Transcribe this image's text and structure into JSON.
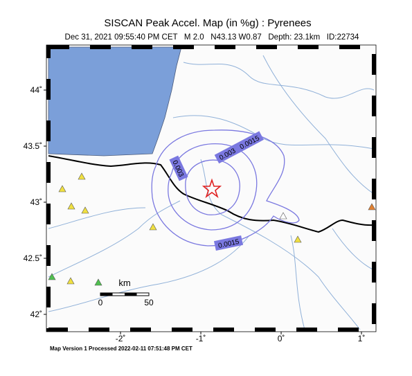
{
  "header": {
    "title": "SISCAN Peak Accel. Map (in %g) : Pyrenees",
    "subtitle": "Dec 31, 2021 09:55:40 PM CET   M 2.0   N43.13 W0.87   Depth: 23.1km   ID:22734"
  },
  "map": {
    "xlim": [
      -2.897,
      1.155
    ],
    "ylim": [
      41.864,
      44.383
    ],
    "xticks": [
      {
        "value": -2,
        "label": "-2˚"
      },
      {
        "value": -1,
        "label": "-1˚"
      },
      {
        "value": 0,
        "label": "0˚"
      },
      {
        "value": 1,
        "label": "1˚"
      }
    ],
    "yticks": [
      {
        "value": 42,
        "label": "42˚"
      },
      {
        "value": 42.5,
        "label": "42.5˚"
      },
      {
        "value": 43,
        "label": "43˚"
      },
      {
        "value": 43.5,
        "label": "43.5˚"
      },
      {
        "value": 44,
        "label": "44˚"
      }
    ],
    "contour_labels": [
      "0.0015",
      "0.003",
      "0.003",
      "0.0015"
    ],
    "scale": {
      "unit": "km",
      "labels": [
        "0",
        "50"
      ]
    }
  },
  "footer": "Map Version 1 Processed 2022-02-11 07:51:48 PM CET"
}
